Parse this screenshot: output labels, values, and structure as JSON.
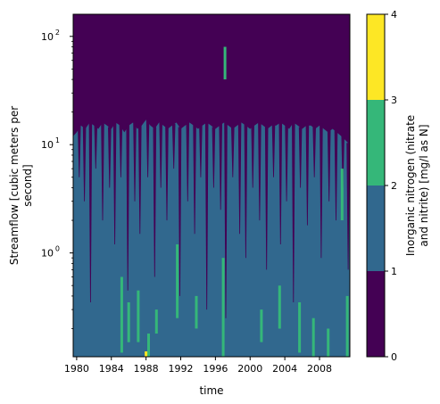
{
  "chart_data": {
    "type": "heatmap",
    "title": "",
    "xlabel": "time",
    "ylabel_line1": "Streamflow [cubic meters per",
    "ylabel_line2": "second]",
    "x_range": [
      1979.6,
      2011.5
    ],
    "x_ticks": [
      1980,
      1984,
      1988,
      1992,
      1996,
      2000,
      2004,
      2008
    ],
    "x_tick_labels": [
      "1980",
      "1984",
      "1988",
      "1992",
      "1996",
      "2000",
      "2004",
      "2008"
    ],
    "y_scale": "log",
    "y_range": [
      0.11,
      160
    ],
    "y_ticks": [
      1,
      10,
      100
    ],
    "y_tick_labels": [
      {
        "base": "10",
        "exp": "0"
      },
      {
        "base": "10",
        "exp": "1"
      },
      {
        "base": "10",
        "exp": "2"
      }
    ],
    "colorbar": {
      "label_line1": "Inorganic nitrogen (nitrate",
      "label_line2": "and nitrite) [mg/l as N]",
      "levels": [
        0,
        1,
        2,
        3,
        4
      ],
      "tick_labels": [
        "0",
        "1",
        "2",
        "3",
        "4"
      ],
      "colors": [
        "#440154",
        "#31688e",
        "#35b779",
        "#fde725"
      ]
    },
    "levels": [
      {
        "range": "0-1",
        "color": "#440154",
        "description_region": "high streamflow above ~15 m3/s"
      },
      {
        "range": "1-2",
        "color": "#31688e",
        "description_region": "low to moderate streamflow"
      },
      {
        "range": "2-3",
        "color": "#35b779",
        "description_region": "low streamflow patches"
      },
      {
        "range": "3-4",
        "color": "#fde725",
        "description_region": "rare, near 1988 at lowest flow"
      }
    ],
    "upper_boundary": [
      [
        1979.6,
        12
      ],
      [
        1980.0,
        13
      ],
      [
        1980.5,
        15
      ],
      [
        1981.0,
        14
      ],
      [
        1981.5,
        16
      ],
      [
        1982.0,
        15
      ],
      [
        1982.5,
        14
      ],
      [
        1983.0,
        16
      ],
      [
        1983.5,
        15
      ],
      [
        1984.0,
        14
      ],
      [
        1984.5,
        16
      ],
      [
        1985.0,
        15
      ],
      [
        1985.5,
        13
      ],
      [
        1986.0,
        15
      ],
      [
        1986.5,
        16
      ],
      [
        1987.0,
        14
      ],
      [
        1987.5,
        15
      ],
      [
        1988.0,
        17
      ],
      [
        1988.5,
        15
      ],
      [
        1989.0,
        14
      ],
      [
        1989.5,
        16
      ],
      [
        1990.0,
        15
      ],
      [
        1990.5,
        14
      ],
      [
        1991.0,
        15
      ],
      [
        1991.5,
        16
      ],
      [
        1992.0,
        14
      ],
      [
        1992.5,
        15
      ],
      [
        1993.0,
        16
      ],
      [
        1993.5,
        15
      ],
      [
        1994.0,
        14
      ],
      [
        1994.5,
        15
      ],
      [
        1995.0,
        16
      ],
      [
        1995.5,
        15
      ],
      [
        1996.0,
        14
      ],
      [
        1996.5,
        15
      ],
      [
        1997.0,
        16
      ],
      [
        1997.5,
        15
      ],
      [
        1998.0,
        14
      ],
      [
        1998.5,
        15
      ],
      [
        1999.0,
        16
      ],
      [
        1999.5,
        15
      ],
      [
        2000.0,
        14
      ],
      [
        2000.5,
        15
      ],
      [
        2001.0,
        16
      ],
      [
        2001.5,
        15
      ],
      [
        2002.0,
        14
      ],
      [
        2002.5,
        15
      ],
      [
        2003.0,
        15
      ],
      [
        2003.5,
        16
      ],
      [
        2004.0,
        15
      ],
      [
        2004.5,
        14
      ],
      [
        2005.0,
        16
      ],
      [
        2005.5,
        15
      ],
      [
        2006.0,
        14
      ],
      [
        2006.5,
        15
      ],
      [
        2007.0,
        15
      ],
      [
        2007.5,
        14
      ],
      [
        2008.0,
        15
      ],
      [
        2008.5,
        14
      ],
      [
        2009.0,
        13
      ],
      [
        2009.5,
        14
      ],
      [
        2010.0,
        13
      ],
      [
        2010.5,
        12
      ],
      [
        2011.0,
        11
      ],
      [
        2011.5,
        10
      ]
    ],
    "dark_streaks": [
      [
        1980.3,
        5
      ],
      [
        1980.9,
        3
      ],
      [
        1981.6,
        0.35
      ],
      [
        1982.2,
        6
      ],
      [
        1983.0,
        2
      ],
      [
        1983.8,
        4
      ],
      [
        1984.4,
        1.2
      ],
      [
        1985.1,
        5
      ],
      [
        1985.9,
        0.45
      ],
      [
        1986.7,
        3
      ],
      [
        1987.3,
        1.5
      ],
      [
        1988.2,
        5
      ],
      [
        1989.0,
        0.6
      ],
      [
        1989.7,
        4
      ],
      [
        1990.4,
        2
      ],
      [
        1991.2,
        6
      ],
      [
        1991.9,
        0.4
      ],
      [
        1992.8,
        3
      ],
      [
        1993.6,
        1.5
      ],
      [
        1994.3,
        5
      ],
      [
        1995.0,
        0.3
      ],
      [
        1995.8,
        4
      ],
      [
        1996.6,
        2.5
      ],
      [
        1997.2,
        0.25
      ],
      [
        1998.0,
        5
      ],
      [
        1998.8,
        1.5
      ],
      [
        1999.5,
        0.9
      ],
      [
        2000.3,
        4
      ],
      [
        2001.1,
        2
      ],
      [
        2001.9,
        0.7
      ],
      [
        2002.7,
        5
      ],
      [
        2003.5,
        1.2
      ],
      [
        2004.2,
        3
      ],
      [
        2005.0,
        0.35
      ],
      [
        2005.8,
        4
      ],
      [
        2006.6,
        1.8
      ],
      [
        2007.4,
        5
      ],
      [
        2008.2,
        0.9
      ],
      [
        2009.1,
        3
      ],
      [
        2009.9,
        2
      ],
      [
        2010.7,
        4
      ],
      [
        2011.3,
        0.7
      ]
    ],
    "green_patches": [
      [
        1985.2,
        0.12,
        0.6
      ],
      [
        1986.0,
        0.15,
        0.35
      ],
      [
        1987.1,
        0.15,
        0.45
      ],
      [
        1988.3,
        0.11,
        0.18
      ],
      [
        1989.2,
        0.18,
        0.3
      ],
      [
        1991.6,
        0.25,
        1.2
      ],
      [
        1993.8,
        0.2,
        0.4
      ],
      [
        1996.9,
        0.11,
        0.9
      ],
      [
        1997.1,
        40,
        80
      ],
      [
        2001.3,
        0.15,
        0.3
      ],
      [
        2003.4,
        0.2,
        0.5
      ],
      [
        2005.7,
        0.12,
        0.35
      ],
      [
        2007.3,
        0.11,
        0.25
      ],
      [
        2009.0,
        0.11,
        0.2
      ],
      [
        2010.6,
        2,
        6
      ],
      [
        2011.2,
        0.11,
        0.4
      ]
    ],
    "yellow_patches": [
      [
        1988.0,
        0.11,
        0.115
      ]
    ]
  }
}
